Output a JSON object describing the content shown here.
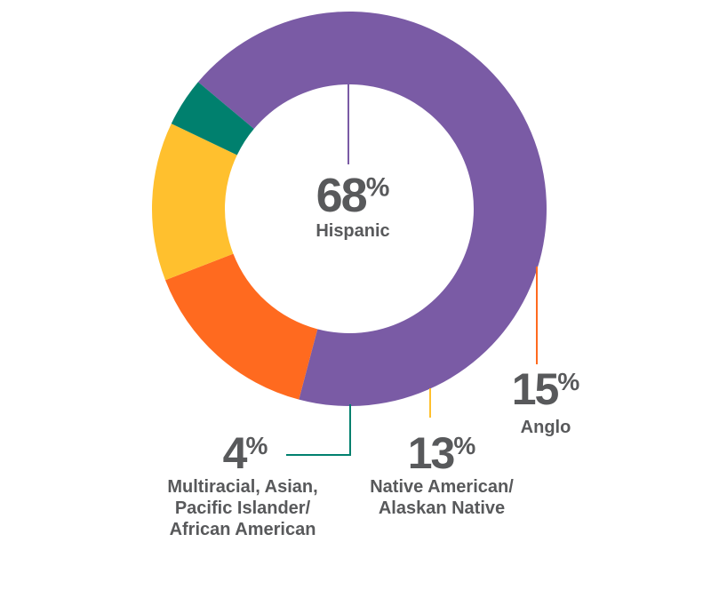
{
  "chart_data": {
    "type": "pie",
    "variant": "donut",
    "unit": "%",
    "slices": [
      {
        "label": "Hispanic",
        "label_lines": [
          "Hispanic"
        ],
        "value": 68,
        "color": "#7a5ba5"
      },
      {
        "label": "Anglo",
        "label_lines": [
          "Anglo"
        ],
        "value": 15,
        "color": "#ff6a1f"
      },
      {
        "label": "Native American/ Alaskan Native",
        "label_lines": [
          "Native American/",
          "Alaskan Native"
        ],
        "value": 13,
        "color": "#ffc02e"
      },
      {
        "label": "Multiracial, Asian, Pacific Islander/ African American",
        "label_lines": [
          "Multiracial, Asian,",
          "Pacific Islander/",
          "African American"
        ],
        "value": 4,
        "color": "#00806e"
      }
    ],
    "title": "",
    "legend": "none",
    "data_labels": "callouts"
  }
}
